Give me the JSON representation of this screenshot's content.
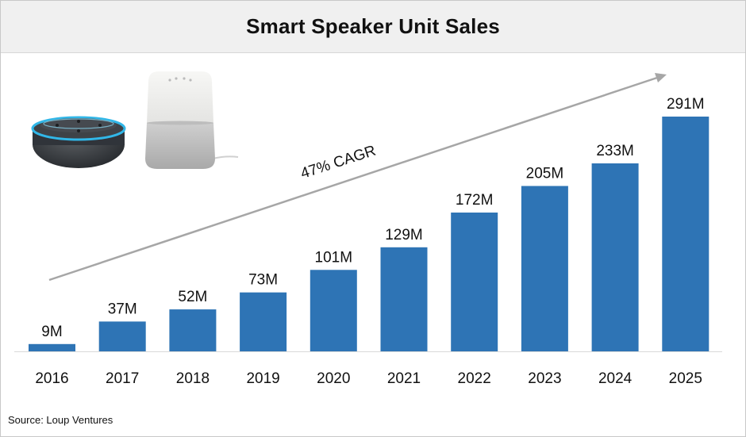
{
  "title": "Smart Speaker Unit Sales",
  "source": "Source: Loup Ventures",
  "illustration": {
    "left_device": "dark-fabric-round-smart-speaker",
    "right_device": "white-cylindrical-smart-speaker"
  },
  "chart_data": {
    "type": "bar",
    "title": "Smart Speaker Unit Sales",
    "xlabel": "",
    "ylabel": "",
    "categories": [
      "2016",
      "2017",
      "2018",
      "2019",
      "2020",
      "2021",
      "2022",
      "2023",
      "2024",
      "2025"
    ],
    "values": [
      9,
      37,
      52,
      73,
      101,
      129,
      172,
      205,
      233,
      291
    ],
    "data_labels": [
      "9M",
      "37M",
      "52M",
      "73M",
      "101M",
      "129M",
      "172M",
      "205M",
      "233M",
      "291M"
    ],
    "ylim": [
      0,
      291
    ],
    "grid": false,
    "legend": "none",
    "bar_color": "#2e74b5",
    "annotation": {
      "text": "47% CAGR",
      "arrow_color": "#a6a6a6"
    }
  }
}
